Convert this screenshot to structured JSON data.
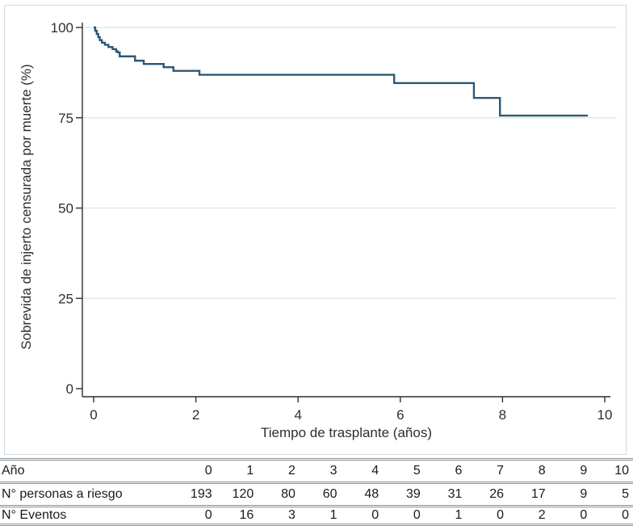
{
  "chart_data": {
    "type": "line",
    "subtype": "kaplan-meier-step",
    "title": "",
    "xlabel": "Tiempo de trasplante (años)",
    "ylabel": "Sobrevida de injerto censurada por muerte (%)",
    "xlim": [
      0,
      10
    ],
    "ylim": [
      0,
      100
    ],
    "x_ticks": [
      0,
      2,
      4,
      6,
      8,
      10
    ],
    "y_ticks": [
      0,
      25,
      50,
      75,
      100
    ],
    "grid": "horizontal-light",
    "legend": "none",
    "colors": {
      "line": "#2b5878",
      "grid": "#dde9f1",
      "axis": "#2e2e2e",
      "frame": "#ccdce8"
    },
    "series": [
      {
        "name": "Sobrevida de injerto censurada por muerte",
        "steps": [
          [
            0,
            100
          ],
          [
            0.03,
            99.1
          ],
          [
            0.06,
            98.2
          ],
          [
            0.09,
            97.3
          ],
          [
            0.12,
            96.5
          ],
          [
            0.16,
            95.8
          ],
          [
            0.22,
            95.2
          ],
          [
            0.29,
            94.6
          ],
          [
            0.37,
            94.0
          ],
          [
            0.44,
            93.4
          ],
          [
            0.47,
            93.1
          ],
          [
            0.51,
            92.0
          ],
          [
            0.81,
            90.8
          ],
          [
            0.98,
            89.9
          ],
          [
            1.37,
            89.0
          ],
          [
            1.56,
            88.0
          ],
          [
            2.07,
            86.9
          ],
          [
            5.88,
            84.6
          ],
          [
            7.44,
            80.5
          ],
          [
            7.95,
            75.6
          ]
        ],
        "end_time": 9.67
      }
    ]
  },
  "risk_table": {
    "rows": [
      {
        "label": "Año",
        "values": [
          0,
          1,
          2,
          3,
          4,
          5,
          6,
          7,
          8,
          9,
          10
        ]
      },
      {
        "label": "N° personas a riesgo",
        "values": [
          193,
          120,
          80,
          60,
          48,
          39,
          31,
          26,
          17,
          9,
          5
        ]
      },
      {
        "label": "N° Eventos",
        "values": [
          0,
          16,
          3,
          1,
          0,
          0,
          1,
          0,
          2,
          0,
          0
        ]
      }
    ]
  }
}
